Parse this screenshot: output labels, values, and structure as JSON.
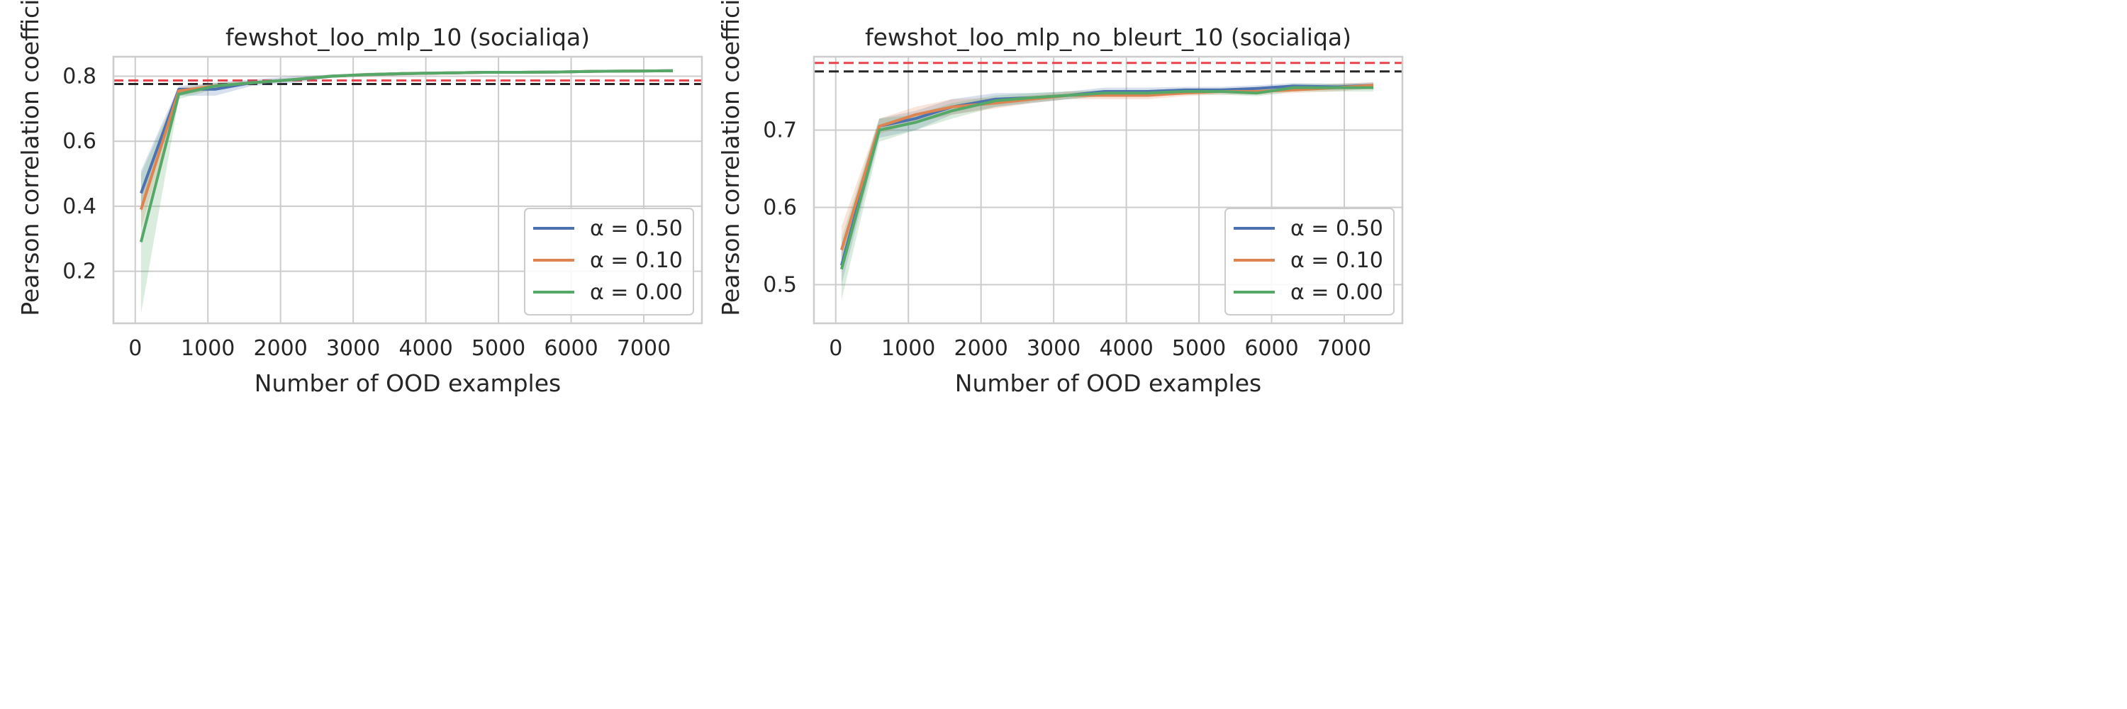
{
  "figure": {
    "background": "#ffffff"
  },
  "colors": {
    "series": [
      "#4c72b0",
      "#dd8452",
      "#55a868"
    ],
    "red_dashed": "#e8434b",
    "black_dashed": "#262626",
    "grid": "#cccccc",
    "axes_edge": "#cccccc"
  },
  "chart_data": [
    {
      "type": "line",
      "title": "fewshot_loo_mlp_10 (socialiqa)",
      "xlabel": "Number of OOD examples",
      "ylabel": "Pearson correlation coefficient (ρ",
      "xlim": [
        -300,
        7800
      ],
      "ylim": [
        0.04,
        0.86
      ],
      "xticks": [
        0,
        1000,
        2000,
        3000,
        4000,
        5000,
        6000,
        7000
      ],
      "yticks": [
        0.2,
        0.4,
        0.6,
        0.8
      ],
      "ytick_labels": [
        "0.2",
        "0.4",
        "0.6",
        "0.8"
      ],
      "grid": true,
      "legend_position": "lower right",
      "reference_lines": [
        {
          "style": "dashed",
          "color": "red",
          "y": 0.787
        },
        {
          "style": "dashed",
          "color": "black",
          "y": 0.776
        }
      ],
      "x": [
        80,
        600,
        1100,
        1600,
        2200,
        2700,
        3200,
        3700,
        4300,
        4800,
        5300,
        5800,
        6300,
        6900,
        7400
      ],
      "series": [
        {
          "name": "α = 0.50",
          "values": [
            0.44,
            0.76,
            0.76,
            0.78,
            0.79,
            0.8,
            0.805,
            0.808,
            0.81,
            0.812,
            0.812,
            0.813,
            0.815,
            0.816,
            0.817
          ],
          "lower": [
            0.38,
            0.74,
            0.74,
            0.77,
            0.78,
            0.795,
            0.8,
            0.803,
            0.806,
            0.808,
            0.808,
            0.809,
            0.811,
            0.812,
            0.813
          ],
          "upper": [
            0.51,
            0.77,
            0.78,
            0.79,
            0.8,
            0.805,
            0.81,
            0.813,
            0.815,
            0.816,
            0.816,
            0.817,
            0.819,
            0.82,
            0.821
          ]
        },
        {
          "name": "α = 0.10",
          "values": [
            0.39,
            0.755,
            0.77,
            0.78,
            0.79,
            0.8,
            0.805,
            0.808,
            0.81,
            0.812,
            0.812,
            0.813,
            0.815,
            0.816,
            0.817
          ],
          "lower": [
            0.33,
            0.74,
            0.76,
            0.775,
            0.785,
            0.795,
            0.8,
            0.803,
            0.806,
            0.808,
            0.808,
            0.809,
            0.811,
            0.812,
            0.813
          ],
          "upper": [
            0.45,
            0.765,
            0.78,
            0.785,
            0.795,
            0.805,
            0.81,
            0.813,
            0.815,
            0.816,
            0.816,
            0.817,
            0.819,
            0.82,
            0.821
          ]
        },
        {
          "name": "α = 0.00",
          "values": [
            0.29,
            0.745,
            0.77,
            0.78,
            0.79,
            0.8,
            0.805,
            0.808,
            0.81,
            0.812,
            0.812,
            0.813,
            0.815,
            0.816,
            0.817
          ],
          "lower": [
            0.07,
            0.73,
            0.76,
            0.775,
            0.785,
            0.795,
            0.8,
            0.803,
            0.806,
            0.808,
            0.808,
            0.809,
            0.811,
            0.812,
            0.813
          ],
          "upper": [
            0.5,
            0.76,
            0.78,
            0.785,
            0.795,
            0.805,
            0.81,
            0.813,
            0.815,
            0.816,
            0.816,
            0.817,
            0.819,
            0.82,
            0.821
          ]
        }
      ]
    },
    {
      "type": "line",
      "title": "fewshot_loo_mlp_no_bleurt_10 (socialiqa)",
      "xlabel": "Number of OOD examples",
      "ylabel": "Pearson correlation coefficient (ρ",
      "xlim": [
        -300,
        7800
      ],
      "ylim": [
        0.45,
        0.795
      ],
      "xticks": [
        0,
        1000,
        2000,
        3000,
        4000,
        5000,
        6000,
        7000
      ],
      "yticks": [
        0.5,
        0.6,
        0.7
      ],
      "ytick_labels": [
        "0.5",
        "0.6",
        "0.7"
      ],
      "grid": true,
      "legend_position": "lower right",
      "reference_lines": [
        {
          "style": "dashed",
          "color": "red",
          "y": 0.787
        },
        {
          "style": "dashed",
          "color": "black",
          "y": 0.776
        }
      ],
      "x": [
        80,
        600,
        1100,
        1600,
        2200,
        2700,
        3200,
        3700,
        4300,
        4800,
        5300,
        5800,
        6300,
        6900,
        7400
      ],
      "series": [
        {
          "name": "α = 0.50",
          "values": [
            0.525,
            0.705,
            0.715,
            0.73,
            0.74,
            0.742,
            0.745,
            0.75,
            0.75,
            0.752,
            0.752,
            0.754,
            0.757,
            0.756,
            0.758
          ],
          "lower": [
            0.5,
            0.69,
            0.7,
            0.72,
            0.73,
            0.735,
            0.74,
            0.745,
            0.745,
            0.748,
            0.748,
            0.75,
            0.752,
            0.752,
            0.754
          ],
          "upper": [
            0.55,
            0.715,
            0.725,
            0.74,
            0.748,
            0.748,
            0.75,
            0.755,
            0.755,
            0.756,
            0.756,
            0.758,
            0.761,
            0.76,
            0.762
          ]
        },
        {
          "name": "α = 0.10",
          "values": [
            0.545,
            0.705,
            0.72,
            0.73,
            0.735,
            0.74,
            0.745,
            0.745,
            0.745,
            0.748,
            0.75,
            0.75,
            0.752,
            0.755,
            0.758
          ],
          "lower": [
            0.52,
            0.695,
            0.71,
            0.72,
            0.728,
            0.735,
            0.74,
            0.74,
            0.74,
            0.744,
            0.746,
            0.746,
            0.748,
            0.75,
            0.754
          ],
          "upper": [
            0.575,
            0.715,
            0.73,
            0.74,
            0.742,
            0.745,
            0.75,
            0.75,
            0.75,
            0.752,
            0.754,
            0.754,
            0.756,
            0.76,
            0.762
          ]
        },
        {
          "name": "α = 0.00",
          "values": [
            0.52,
            0.7,
            0.71,
            0.725,
            0.738,
            0.742,
            0.745,
            0.748,
            0.748,
            0.75,
            0.75,
            0.748,
            0.755,
            0.755,
            0.755
          ],
          "lower": [
            0.48,
            0.685,
            0.7,
            0.715,
            0.73,
            0.736,
            0.74,
            0.744,
            0.744,
            0.746,
            0.746,
            0.744,
            0.75,
            0.75,
            0.75
          ],
          "upper": [
            0.56,
            0.715,
            0.72,
            0.735,
            0.745,
            0.748,
            0.75,
            0.752,
            0.752,
            0.754,
            0.754,
            0.752,
            0.76,
            0.76,
            0.76
          ]
        }
      ]
    }
  ]
}
